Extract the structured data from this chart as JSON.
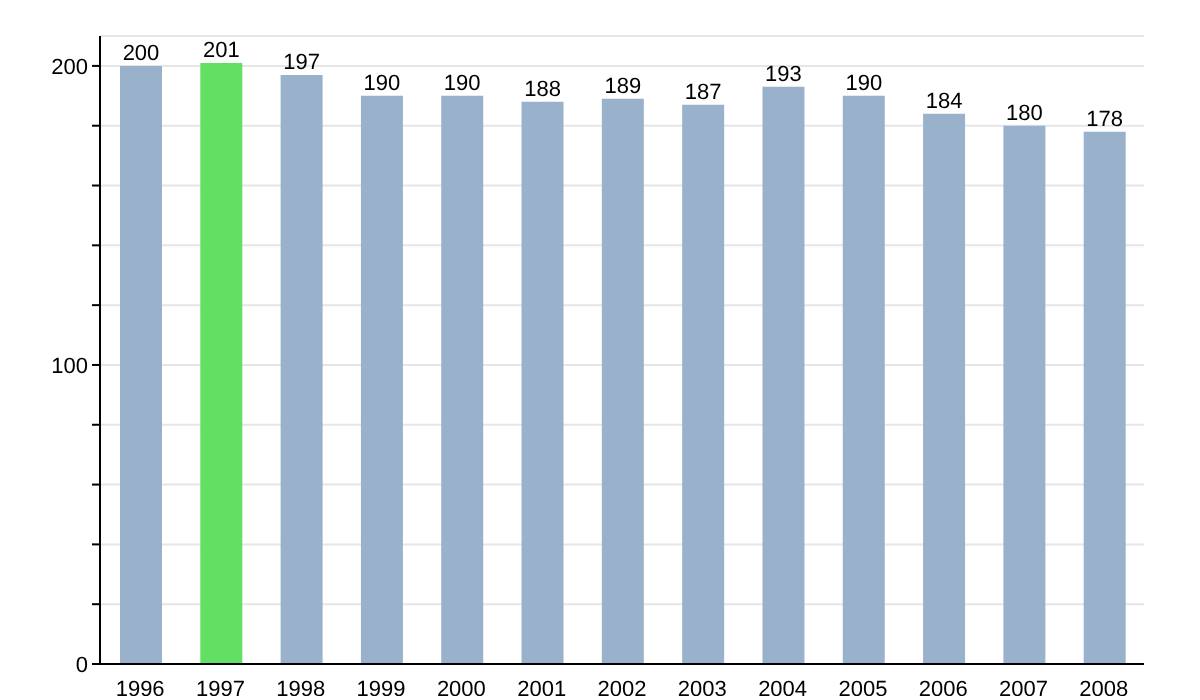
{
  "chart_data": {
    "type": "bar",
    "categories": [
      "1996",
      "1997",
      "1998",
      "1999",
      "2000",
      "2001",
      "2002",
      "2003",
      "2004",
      "2005",
      "2006",
      "2007",
      "2008"
    ],
    "values": [
      200,
      201,
      197,
      190,
      190,
      188,
      189,
      187,
      193,
      190,
      184,
      180,
      178
    ],
    "colors": [
      "#9ab1cb",
      "#62e063",
      "#9ab1cb",
      "#9ab1cb",
      "#9ab1cb",
      "#9ab1cb",
      "#9ab1cb",
      "#9ab1cb",
      "#9ab1cb",
      "#9ab1cb",
      "#9ab1cb",
      "#9ab1cb",
      "#9ab1cb"
    ],
    "ylim": [
      0,
      210
    ],
    "yticks": [
      0,
      {
        "value": 20,
        "label": null
      },
      {
        "value": 40,
        "label": null
      },
      {
        "value": 60,
        "label": null
      },
      {
        "value": 80,
        "label": null
      },
      100,
      {
        "value": 120,
        "label": null
      },
      {
        "value": 140,
        "label": null
      },
      {
        "value": 160,
        "label": null
      },
      {
        "value": 180,
        "label": null
      },
      200
    ],
    "grid": "y",
    "data_labels": true
  }
}
